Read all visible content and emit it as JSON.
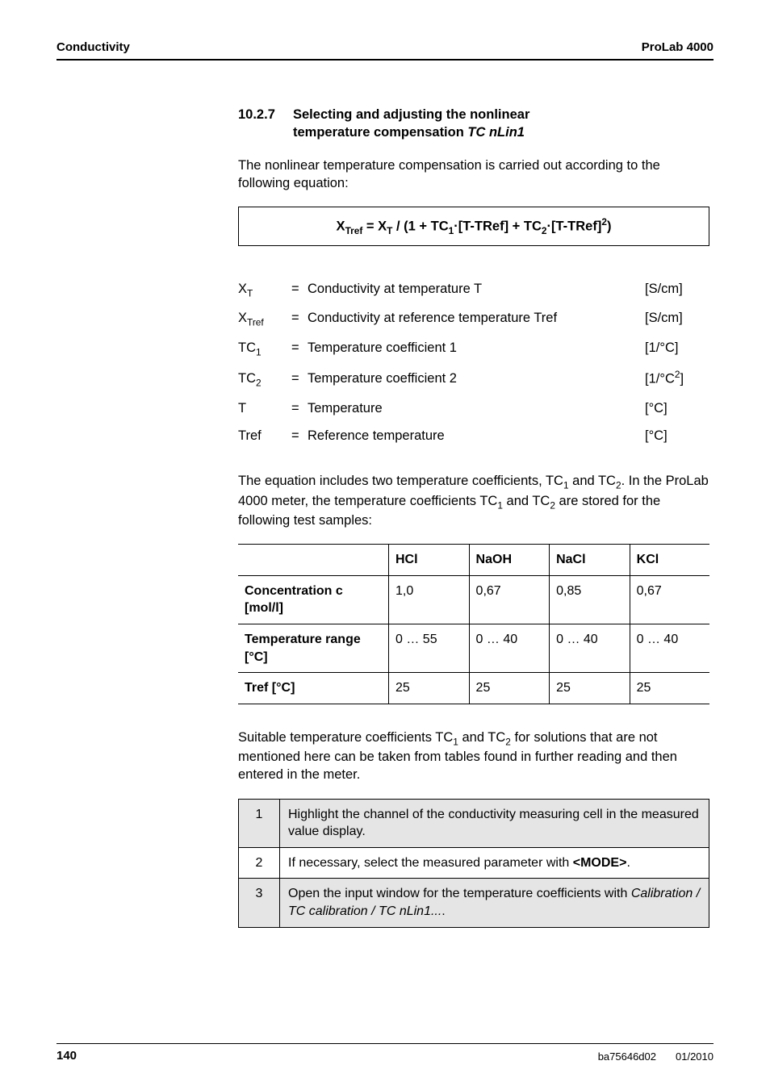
{
  "header": {
    "left": "Conductivity",
    "right": "ProLab 4000"
  },
  "section": {
    "number": "10.2.7",
    "title_line1": "Selecting and adjusting the nonlinear",
    "title_line2_plain": "temperature compensation ",
    "title_line2_ital": "TC nLin1"
  },
  "intro_para": "The nonlinear temperature compensation is carried out according to the following equation:",
  "equation": {
    "pre": "X",
    "pre_sub": "Tref",
    "mid1": " = X",
    "mid1_sub": "T",
    "mid2": " / (1 + TC",
    "mid2_sub": "1",
    "mid3": "·[T-TRef] + TC",
    "mid3_sub": "2",
    "mid4": "·[T-TRef]",
    "mid4_sup": "2",
    "end": ")"
  },
  "vars": [
    {
      "sym_html": "X<sub>T</sub>",
      "desc": "Conductivity at temperature T",
      "unit_html": "[S/cm]"
    },
    {
      "sym_html": "X<sub>Tref</sub>",
      "desc": "Conductivity at reference temperature Tref",
      "unit_html": "[S/cm]"
    },
    {
      "sym_html": "TC<sub>1</sub>",
      "desc": "Temperature coefficient 1",
      "unit_html": "[1/°C]"
    },
    {
      "sym_html": "TC<sub>2</sub>",
      "desc": "Temperature coefficient 2",
      "unit_html": "[1/°C<sup>2</sup>]"
    },
    {
      "sym_html": "T",
      "desc": "Temperature",
      "unit_html": "[°C]"
    },
    {
      "sym_html": "Tref",
      "desc": "Reference temperature",
      "unit_html": "[°C]"
    }
  ],
  "coef_para": {
    "p1": "The equation includes two temperature coefficients, TC",
    "s1": "1",
    "p2": " and TC",
    "s2": "2",
    "p3": ". In the ProLab 4000 meter, the temperature coefficients TC",
    "s3": "1",
    "p4": " and TC",
    "s4": "2",
    "p5": " are stored for the following test samples:"
  },
  "coef_table": {
    "headers": [
      "",
      "HCl",
      "NaOH",
      "NaCl",
      "KCl"
    ],
    "rows": [
      {
        "label_html": "Concentration c<br>[mol/l]",
        "cells": [
          "1,0",
          "0,67",
          "0,85",
          "0,67"
        ]
      },
      {
        "label_html": "Temperature range<br>[°C]",
        "cells": [
          "0 … 55",
          "0 … 40",
          "0 … 40",
          "0 … 40"
        ]
      },
      {
        "label_html": "Tref [°C]",
        "cells": [
          "25",
          "25",
          "25",
          "25"
        ]
      }
    ]
  },
  "suitable_para": {
    "p1": "Suitable temperature coefficients TC",
    "s1": "1",
    "p2": " and TC",
    "s2": "2",
    "p3": " for solutions that are not mentioned here can be taken from tables found in further reading and then entered in the meter."
  },
  "steps": [
    {
      "n": "1",
      "text": "Highlight the channel of the conductivity measuring cell in the measured value display.",
      "shade": true
    },
    {
      "n": "2",
      "pre": "If necessary, select the measured parameter with ",
      "bold": "<MODE>",
      "post": ".",
      "shade": false
    },
    {
      "n": "3",
      "pre": "Open the input window for the temperature coefficients with ",
      "ital": "Calibration / TC calibration / TC nLin1...",
      "post": ".",
      "shade": true
    }
  ],
  "footer": {
    "page": "140",
    "doc": "ba75646d02",
    "date": "01/2010"
  }
}
